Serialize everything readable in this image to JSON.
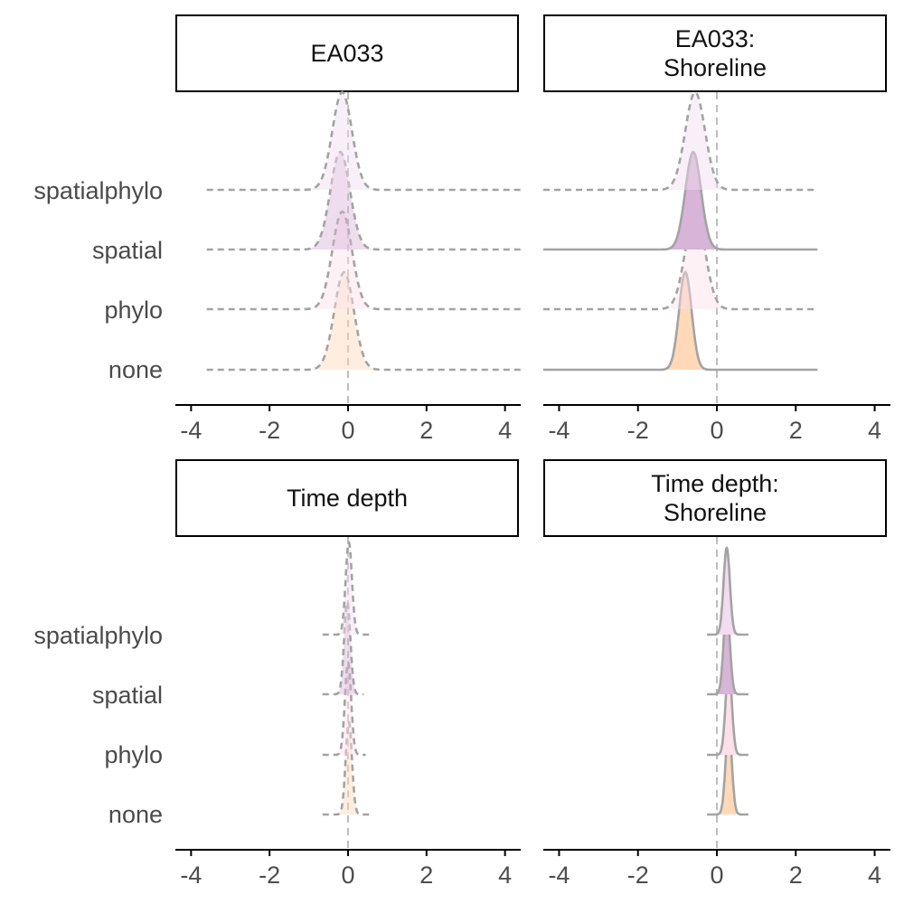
{
  "colors": {
    "none": "#ffd9b8",
    "phylo": "#fbe0ea",
    "spatial": "#d7b4d8",
    "spatialphylo": "#f2dcef",
    "line": "#a3a3a3",
    "zero_line": "#bdbdbd",
    "axis": "#000000",
    "tick_label": "#4d4d4d"
  },
  "chart_data": [
    {
      "type": "ridgeline",
      "title": "EA033",
      "x_range": [
        -4.4,
        4.4
      ],
      "x_ticks": [
        "-4",
        "-2",
        "0",
        "2",
        "4"
      ],
      "y_categories": [
        "spatialphylo",
        "spatial",
        "phylo",
        "none"
      ],
      "series": [
        {
          "model": "spatialphylo",
          "prior": {
            "mean": -0.15,
            "sd": 0.25,
            "range": [
              -3.6,
              4.4
            ]
          },
          "posterior": null
        },
        {
          "model": "spatial",
          "prior": {
            "mean": -0.2,
            "sd": 0.25,
            "range": [
              -3.6,
              4.4
            ]
          },
          "posterior": null
        },
        {
          "model": "phylo",
          "prior": {
            "mean": -0.15,
            "sd": 0.25,
            "range": [
              -3.6,
              4.4
            ]
          },
          "posterior": null
        },
        {
          "model": "none",
          "prior": {
            "mean": -0.1,
            "sd": 0.25,
            "range": [
              -3.6,
              4.4
            ]
          },
          "posterior": null
        }
      ]
    },
    {
      "type": "ridgeline",
      "title": "EA033:\nShoreline",
      "x_range": [
        -4.4,
        4.4
      ],
      "x_ticks": [
        "-4",
        "-2",
        "0",
        "2",
        "4"
      ],
      "y_categories": [
        "spatialphylo",
        "spatial",
        "phylo",
        "none"
      ],
      "series": [
        {
          "model": "spatialphylo",
          "prior": {
            "mean": -0.55,
            "sd": 0.25,
            "range": [
              -4.4,
              2.55
            ]
          },
          "posterior": null
        },
        {
          "model": "spatial",
          "prior": null,
          "posterior": {
            "mean": -0.6,
            "sd": 0.2,
            "range": [
              -4.4,
              2.55
            ]
          }
        },
        {
          "model": "phylo",
          "prior": {
            "mean": -0.55,
            "sd": 0.25,
            "range": [
              -4.4,
              2.55
            ]
          },
          "posterior": null
        },
        {
          "model": "none",
          "prior": null,
          "posterior": {
            "mean": -0.8,
            "sd": 0.16,
            "range": [
              -4.4,
              2.55
            ]
          }
        }
      ]
    },
    {
      "type": "ridgeline",
      "title": "Time depth",
      "x_range": [
        -4.4,
        4.4
      ],
      "x_ticks": [
        "-4",
        "-2",
        "0",
        "2",
        "4"
      ],
      "y_categories": [
        "spatialphylo",
        "spatial",
        "phylo",
        "none"
      ],
      "series": [
        {
          "model": "spatialphylo",
          "prior": {
            "mean": 0.02,
            "sd": 0.08,
            "range": [
              -0.65,
              0.55
            ]
          },
          "posterior": null
        },
        {
          "model": "spatial",
          "prior": {
            "mean": -0.02,
            "sd": 0.08,
            "range": [
              -0.65,
              0.4
            ]
          },
          "posterior": null
        },
        {
          "model": "phylo",
          "prior": {
            "mean": 0.0,
            "sd": 0.08,
            "range": [
              -0.65,
              0.45
            ]
          },
          "posterior": null
        },
        {
          "model": "none",
          "prior": {
            "mean": 0.02,
            "sd": 0.08,
            "range": [
              -0.65,
              0.55
            ]
          },
          "posterior": null
        }
      ]
    },
    {
      "type": "ridgeline",
      "title": "Time depth:\nShoreline",
      "x_range": [
        -4.4,
        4.4
      ],
      "x_ticks": [
        "-4",
        "-2",
        "0",
        "2",
        "4"
      ],
      "y_categories": [
        "spatialphylo",
        "spatial",
        "phylo",
        "none"
      ],
      "series": [
        {
          "model": "spatialphylo",
          "prior": null,
          "posterior": {
            "mean": 0.25,
            "sd": 0.08,
            "range": [
              -0.25,
              0.8
            ]
          }
        },
        {
          "model": "spatial",
          "prior": null,
          "posterior": {
            "mean": 0.25,
            "sd": 0.08,
            "range": [
              -0.25,
              0.8
            ]
          }
        },
        {
          "model": "phylo",
          "prior": null,
          "posterior": {
            "mean": 0.3,
            "sd": 0.08,
            "range": [
              -0.25,
              0.8
            ]
          }
        },
        {
          "model": "none",
          "prior": null,
          "posterior": {
            "mean": 0.3,
            "sd": 0.08,
            "range": [
              -0.25,
              0.8
            ]
          }
        }
      ]
    }
  ]
}
